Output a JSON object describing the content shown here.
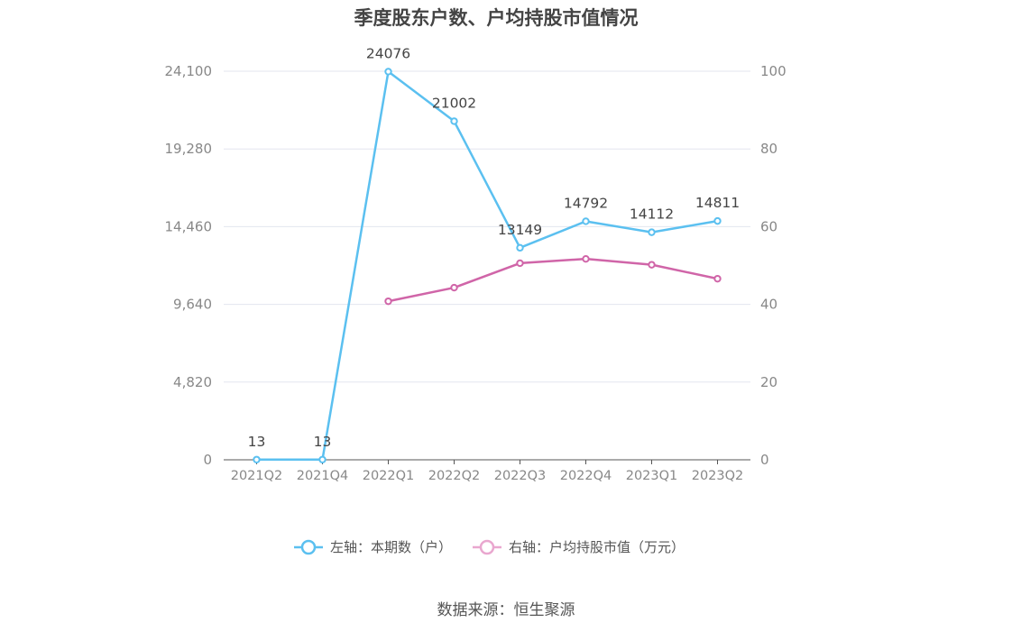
{
  "chart_data": {
    "type": "line",
    "title": "季度股东户数、户均持股市值情况",
    "categories": [
      "2021Q2",
      "2021Q4",
      "2022Q1",
      "2022Q2",
      "2022Q3",
      "2022Q4",
      "2023Q1",
      "2023Q2"
    ],
    "left_axis": {
      "ticks": [
        "0",
        "4,820",
        "9,640",
        "14,460",
        "19,280",
        "24,100"
      ],
      "ylim": [
        0,
        24100
      ]
    },
    "right_axis": {
      "ticks": [
        "0",
        "20",
        "40",
        "60",
        "80",
        "100"
      ],
      "ylim": [
        0,
        100
      ]
    },
    "grid": true,
    "legend_position": "bottom",
    "series": [
      {
        "name": "左轴：本期数（户）",
        "axis": "left",
        "color": "#5bc0f0",
        "values": [
          13,
          13,
          24076,
          21002,
          13149,
          14792,
          14112,
          14811
        ],
        "labels": [
          "13",
          "13",
          "24076",
          "21002",
          "13149",
          "14792",
          "14112",
          "14811"
        ]
      },
      {
        "name": "右轴：户均持股市值（万元）",
        "axis": "right",
        "color": "#d065a8",
        "values": [
          null,
          null,
          40.8,
          44.3,
          50.6,
          51.7,
          50.2,
          46.6
        ]
      }
    ]
  },
  "legend": {
    "left_label": "左轴：本期数（户）",
    "right_label": "右轴：户均持股市值（万元）"
  },
  "source": "数据来源：恒生聚源"
}
